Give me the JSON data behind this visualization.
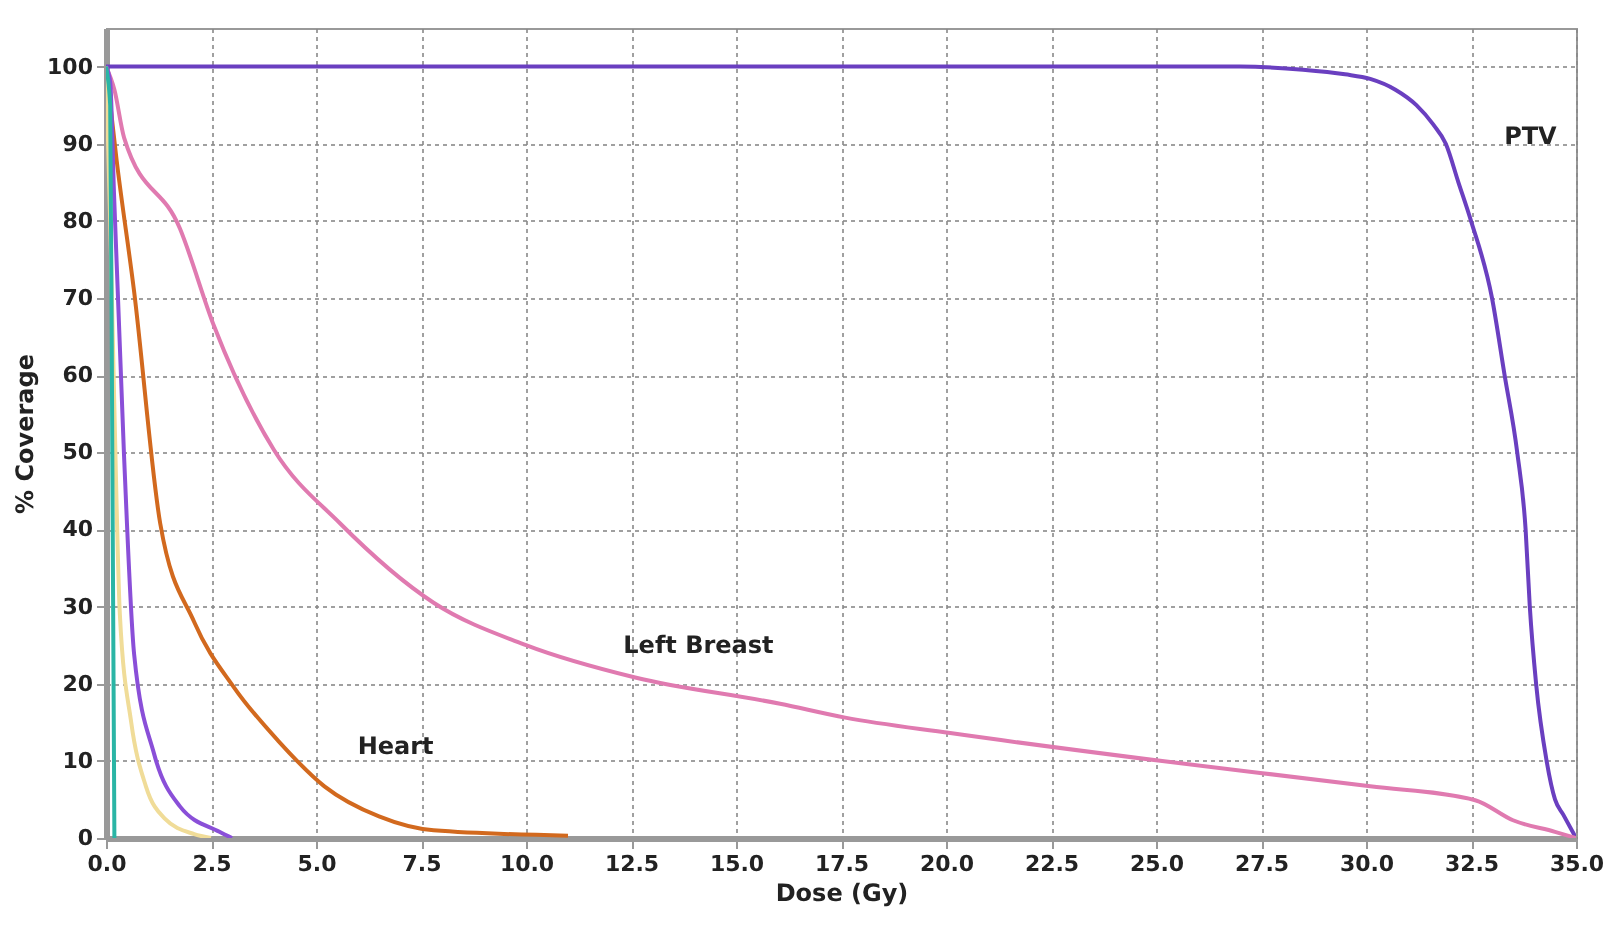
{
  "chart_data": {
    "type": "line",
    "xlabel": "Dose (Gy)",
    "ylabel": "% Coverage",
    "xlim": [
      0,
      35
    ],
    "ylim": [
      0,
      105
    ],
    "xticks": [
      {
        "value": 0,
        "label": "0.0"
      },
      {
        "value": 2.5,
        "label": "2.5"
      },
      {
        "value": 5,
        "label": "5.0"
      },
      {
        "value": 7.5,
        "label": "7.5"
      },
      {
        "value": 10,
        "label": "10.0"
      },
      {
        "value": 12.5,
        "label": "12.5"
      },
      {
        "value": 15,
        "label": "15.0"
      },
      {
        "value": 17.5,
        "label": "17.5"
      },
      {
        "value": 20,
        "label": "20.0"
      },
      {
        "value": 22.5,
        "label": "22.5"
      },
      {
        "value": 25,
        "label": "25.0"
      },
      {
        "value": 27.5,
        "label": "27.5"
      },
      {
        "value": 30,
        "label": "30.0"
      },
      {
        "value": 32.5,
        "label": "32.5"
      },
      {
        "value": 35,
        "label": "35.0"
      }
    ],
    "yticks": [
      0,
      10,
      20,
      30,
      40,
      50,
      60,
      70,
      80,
      90,
      100
    ],
    "grid": true,
    "marker": "none",
    "line_style": "solid",
    "series": [
      {
        "color": "#6a3fc0",
        "x": [
          0,
          27,
          28.5,
          29.5,
          30.1,
          30.7,
          31.2,
          31.6,
          31.9,
          32.2,
          32.5,
          33,
          33.3,
          33.6,
          33.8,
          33.9,
          34.05,
          34.3,
          34.5,
          34.7,
          35
        ],
        "values": [
          100,
          100,
          99.6,
          99,
          98.4,
          97,
          95,
          92.5,
          90,
          85,
          80,
          70,
          60,
          50,
          40,
          30,
          20,
          10,
          5,
          3,
          0
        ]
      },
      {
        "color": "#e07ab0",
        "x": [
          0,
          0.2,
          0.43,
          1.76,
          2.57,
          4,
          5.57,
          7.8,
          10,
          12.6,
          16.05,
          17.6,
          20.1,
          25.1,
          30.1,
          32.6,
          33.5,
          34.5,
          35
        ],
        "values": [
          100,
          97,
          90.8,
          79,
          66.4,
          50.3,
          40.8,
          30.5,
          25,
          20.8,
          17.4,
          15.6,
          13.6,
          10,
          6.7,
          4.9,
          2.3,
          0.8,
          0
        ]
      },
      {
        "color": "#d2691e",
        "x": [
          0,
          0.25,
          0.67,
          1.29,
          2.1,
          3.05,
          4.1,
          5.2,
          6.5,
          7.8,
          11
        ],
        "values": [
          100,
          88,
          70.8,
          40.8,
          28,
          19.5,
          12.6,
          6.7,
          2.8,
          1,
          0.3
        ]
      },
      {
        "color": "#8a4fd8",
        "x": [
          0,
          0.1,
          0.19,
          0.43,
          0.67,
          1.14,
          1.76,
          2.7,
          3
        ],
        "values": [
          100,
          98,
          83.6,
          49.5,
          23.8,
          11,
          4.1,
          0.8,
          0
        ]
      },
      {
        "color": "#f0dc98",
        "x": [
          0,
          0.1,
          0.19,
          0.33,
          0.6,
          0.95,
          1.4,
          2.1,
          2.5
        ],
        "values": [
          100,
          80,
          58,
          29,
          15,
          6.7,
          2.5,
          0.5,
          0
        ]
      },
      {
        "color": "#2ab5a5",
        "x": [
          0,
          0.1,
          0.15,
          0.2
        ],
        "values": [
          100,
          95,
          50,
          0
        ]
      }
    ],
    "annotations": [
      "PTV",
      "Left Breast",
      "Heart"
    ]
  }
}
